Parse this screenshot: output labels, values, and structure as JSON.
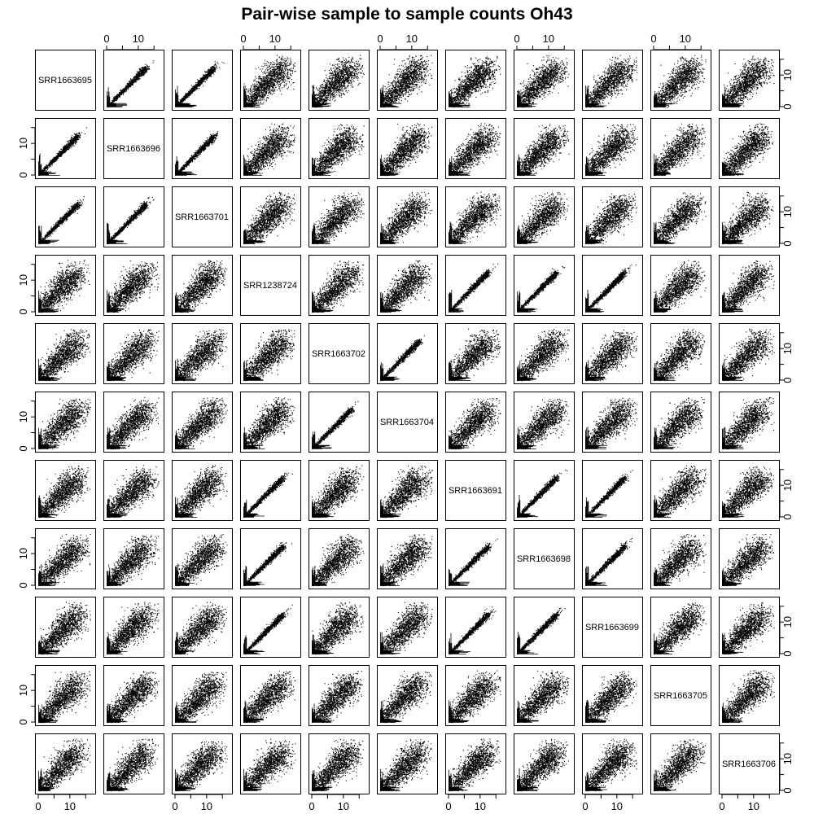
{
  "chart_data": {
    "type": "scatter",
    "title": "Pair-wise sample to sample counts Oh43",
    "samples": [
      "SRR1663695",
      "SRR1663696",
      "SRR1663701",
      "SRR1238724",
      "SRR1663702",
      "SRR1663704",
      "SRR1663691",
      "SRR1663698",
      "SRR1663699",
      "SRR1663705",
      "SRR1663706"
    ],
    "axis_range": [
      0,
      17
    ],
    "tick_values": [
      0,
      10
    ],
    "tick_labels": [
      "0",
      "10"
    ],
    "grid": false,
    "groups": [
      [
        0,
        1,
        2
      ],
      [
        3,
        6,
        7,
        8
      ],
      [
        4,
        5
      ],
      [
        9
      ],
      [
        10
      ]
    ]
  }
}
